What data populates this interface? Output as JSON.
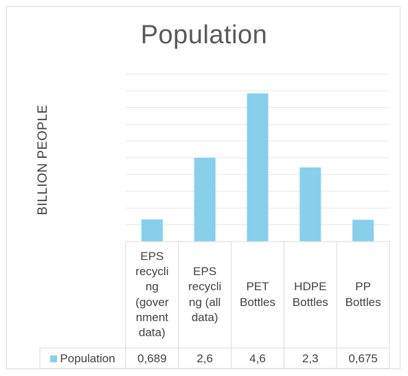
{
  "chart_data": {
    "type": "bar",
    "title": "Population",
    "ylabel": "BILLION PEOPLE",
    "xlabel": "",
    "categories": [
      "EPS recycling (government data)",
      "EPS recycling (all data)",
      "PET Bottles",
      "HDPE Bottles",
      "PP Bottles"
    ],
    "category_lines": [
      [
        "EPS",
        "recycli",
        "ng",
        "(gover",
        "nment",
        "data)"
      ],
      [
        "EPS",
        "recycli",
        "ng (all",
        "data)"
      ],
      [
        "PET",
        "Bottles"
      ],
      [
        "HDPE",
        "Bottles"
      ],
      [
        "PP",
        "Bottles"
      ]
    ],
    "series": [
      {
        "name": "Population",
        "values": [
          0.689,
          2.6,
          4.6,
          2.3,
          0.675
        ]
      }
    ],
    "value_labels": [
      "0,689",
      "2,6",
      "4,6",
      "2,3",
      "0,675"
    ],
    "ylim": [
      0,
      5.2
    ],
    "grid": true,
    "legend": "data-table",
    "colors": {
      "bar": "#87cfeb",
      "gridline": "#e6e6e6",
      "border": "#d9d9d9"
    }
  }
}
